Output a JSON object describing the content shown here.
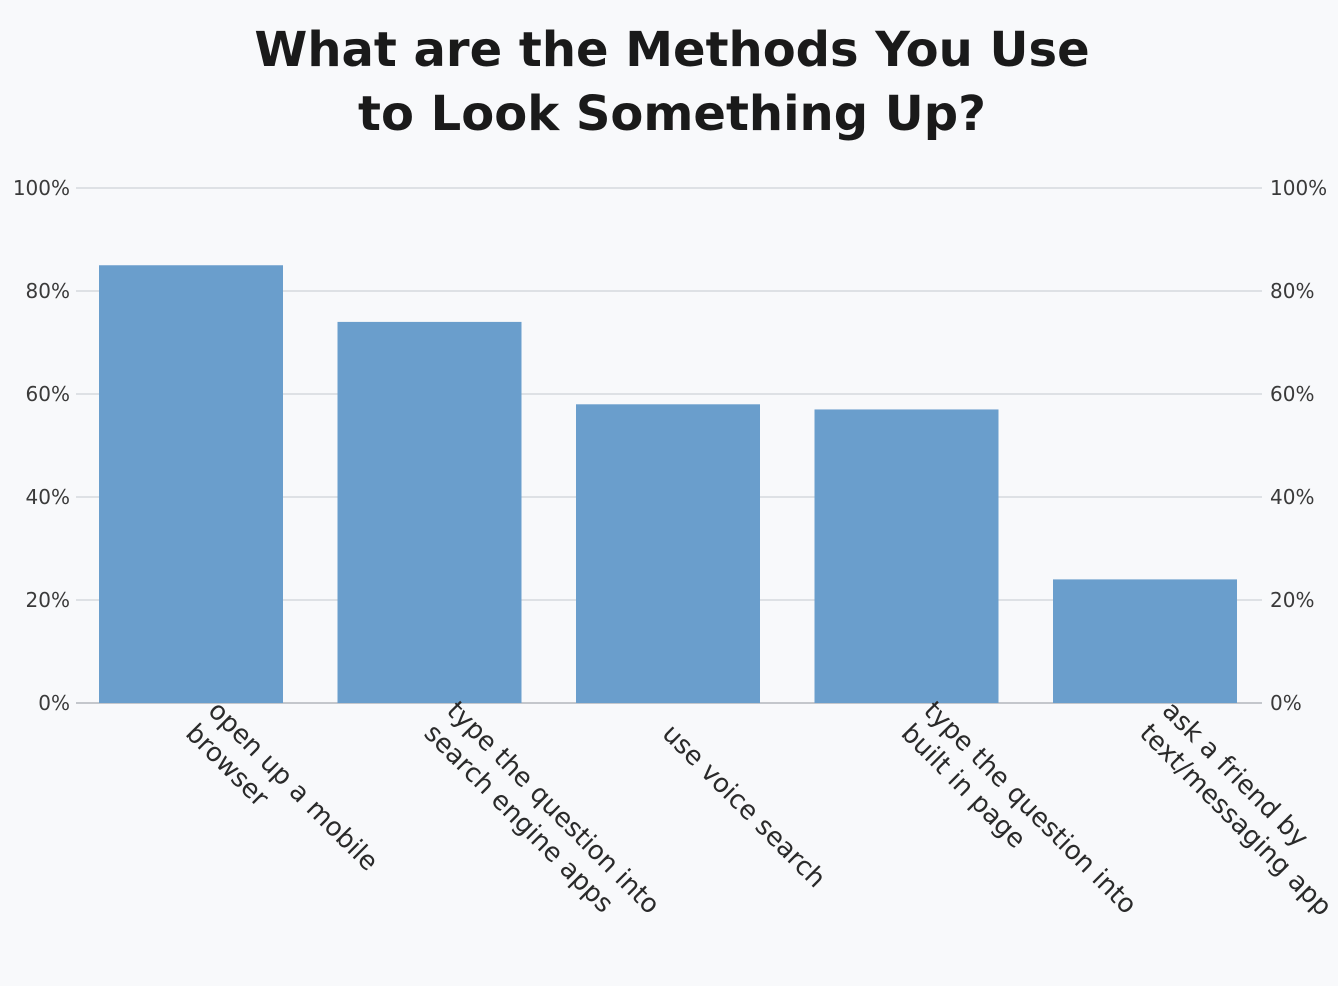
{
  "chart_data": {
    "type": "bar",
    "title_lines": [
      "What are the Methods You Use",
      "to Look Something Up?"
    ],
    "xlabel": "",
    "ylabel": "",
    "categories": [
      [
        "open up a mobile",
        "browser"
      ],
      [
        "type the question into",
        "search engine apps"
      ],
      [
        "use voice search"
      ],
      [
        "type the question into",
        "built in page"
      ],
      [
        "ask a friend by",
        "text/messaging app"
      ]
    ],
    "values": [
      85,
      74,
      58,
      57,
      24
    ],
    "ylim": [
      0,
      100
    ],
    "yticks": [
      0,
      20,
      40,
      60,
      80,
      100
    ],
    "ytick_labels": [
      "0%",
      "20%",
      "40%",
      "60%",
      "80%",
      "100%"
    ],
    "y_axis_both_sides": true,
    "grid": true,
    "legend": "none",
    "bar_color": "#6a9ecc",
    "grid_color": "#d6d9de",
    "baseline_color": "#c4c7cc"
  }
}
